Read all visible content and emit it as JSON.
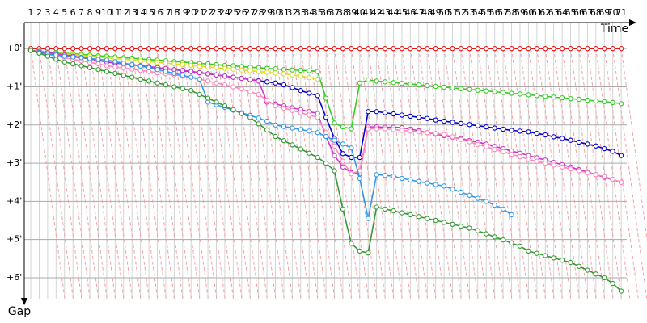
{
  "chart_data": {
    "type": "line",
    "x_label": "Time",
    "y_label": "Gap",
    "x": [
      1,
      2,
      3,
      4,
      5,
      6,
      7,
      8,
      9,
      10,
      11,
      12,
      13,
      14,
      15,
      16,
      17,
      18,
      19,
      20,
      21,
      22,
      23,
      24,
      25,
      26,
      27,
      28,
      29,
      30,
      31,
      32,
      33,
      34,
      35,
      36,
      37,
      38,
      39,
      40,
      41,
      42,
      43,
      44,
      45,
      46,
      47,
      48,
      49,
      50,
      51,
      52,
      53,
      54,
      55,
      56,
      57,
      58,
      59,
      60,
      61,
      62,
      63,
      64,
      65,
      66,
      67,
      68,
      69,
      70,
      71
    ],
    "xlim": [
      0.23,
      71.66
    ],
    "xticks": [
      1,
      2,
      3,
      4,
      5,
      6,
      7,
      8,
      9,
      10,
      11,
      12,
      13,
      14,
      15,
      16,
      17,
      18,
      19,
      20,
      21,
      22,
      23,
      24,
      25,
      26,
      27,
      28,
      29,
      30,
      31,
      32,
      33,
      34,
      35,
      36,
      37,
      38,
      39,
      40,
      41,
      42,
      43,
      44,
      45,
      46,
      47,
      48,
      49,
      50,
      51,
      52,
      53,
      54,
      55,
      56,
      57,
      58,
      59,
      60,
      61,
      62,
      63,
      64,
      65,
      66,
      67,
      68,
      69,
      70,
      71
    ],
    "ylim": [
      -0.68,
      6.55
    ],
    "yticks": [
      {
        "value": 0,
        "label": "+0'"
      },
      {
        "value": 1,
        "label": "+1'"
      },
      {
        "value": 2,
        "label": "+2'"
      },
      {
        "value": 3,
        "label": "+3'"
      },
      {
        "value": 4,
        "label": "+4'"
      },
      {
        "value": 5,
        "label": "+5'"
      },
      {
        "value": 6,
        "label": "+6'"
      }
    ],
    "y_inverted": true,
    "grid": true,
    "series": [
      {
        "color": "#ee1111",
        "values": [
          0,
          0,
          0,
          0,
          0,
          0,
          0,
          0,
          0,
          0,
          0,
          0,
          0,
          0,
          0,
          0,
          0,
          0,
          0,
          0,
          0,
          0,
          0,
          0,
          0,
          0,
          0,
          0,
          0,
          0,
          0,
          0,
          0,
          0,
          0,
          0,
          0,
          0,
          0,
          0,
          0,
          0,
          0,
          0,
          0,
          0,
          0,
          0,
          0,
          0,
          0,
          0,
          0,
          0,
          0,
          0,
          0,
          0,
          0,
          0,
          0,
          0,
          0,
          0,
          0,
          0,
          0,
          0,
          0,
          0,
          0
        ]
      },
      {
        "color": "#33cc22",
        "values": [
          0.05,
          0.07,
          0.09,
          0.1,
          0.12,
          0.14,
          0.15,
          0.17,
          0.19,
          0.2,
          0.22,
          0.24,
          0.25,
          0.27,
          0.29,
          0.3,
          0.32,
          0.34,
          0.35,
          0.37,
          0.39,
          0.4,
          0.42,
          0.44,
          0.45,
          0.47,
          0.49,
          0.5,
          0.52,
          0.53,
          0.55,
          0.56,
          0.57,
          0.58,
          0.6,
          1.3,
          1.95,
          2.05,
          2.1,
          0.9,
          0.82,
          0.85,
          0.87,
          0.89,
          0.91,
          0.93,
          0.95,
          0.97,
          0.99,
          1.01,
          1.03,
          1.05,
          1.07,
          1.09,
          1.11,
          1.13,
          1.15,
          1.17,
          1.19,
          1.21,
          1.23,
          1.25,
          1.27,
          1.29,
          1.31,
          1.33,
          1.35,
          1.37,
          1.39,
          1.41,
          1.44
        ]
      },
      {
        "color": "#dddd22",
        "values": [
          0.05,
          0.07,
          0.1,
          0.12,
          0.14,
          0.16,
          0.18,
          0.2,
          0.22,
          0.24,
          0.26,
          0.28,
          0.3,
          0.32,
          0.34,
          0.36,
          0.38,
          0.4,
          0.42,
          0.44,
          0.46,
          0.48,
          0.5,
          0.52,
          0.54,
          0.56,
          0.58,
          0.6,
          0.62,
          0.64,
          0.66,
          0.69,
          0.72,
          0.76,
          0.8,
          null,
          null,
          null,
          null,
          null,
          null,
          null,
          null,
          null,
          null,
          null,
          null,
          null,
          null,
          null,
          null,
          null,
          null,
          null,
          null,
          null,
          null,
          null,
          null,
          null,
          null,
          null,
          null,
          null,
          null,
          null,
          null,
          null,
          null,
          null,
          null
        ]
      },
      {
        "color": "#0000cc",
        "values": [
          0.05,
          0.08,
          0.11,
          0.14,
          0.17,
          0.2,
          0.23,
          0.27,
          0.31,
          0.35,
          0.38,
          0.4,
          0.43,
          0.45,
          0.48,
          0.5,
          0.53,
          0.55,
          0.58,
          0.6,
          0.63,
          0.66,
          0.69,
          0.72,
          0.75,
          0.78,
          0.81,
          0.84,
          0.87,
          0.9,
          0.95,
          1.02,
          1.1,
          1.17,
          1.23,
          1.8,
          2.35,
          2.75,
          2.85,
          2.85,
          1.65,
          1.65,
          1.68,
          1.71,
          1.74,
          1.77,
          1.8,
          1.83,
          1.87,
          1.9,
          1.93,
          1.96,
          1.99,
          2.02,
          2.05,
          2.08,
          2.11,
          2.14,
          2.16,
          2.18,
          2.22,
          2.26,
          2.31,
          2.35,
          2.4,
          2.45,
          2.5,
          2.55,
          2.62,
          2.69,
          2.8
        ]
      },
      {
        "color": "#cc33cc",
        "values": [
          0.05,
          0.08,
          0.11,
          0.14,
          0.17,
          0.2,
          0.23,
          0.27,
          0.31,
          0.35,
          0.37,
          0.4,
          0.42,
          0.45,
          0.47,
          0.5,
          0.52,
          0.55,
          0.57,
          0.6,
          0.63,
          0.66,
          0.69,
          0.72,
          0.75,
          0.78,
          0.81,
          0.85,
          1.4,
          1.45,
          1.5,
          1.55,
          1.6,
          1.65,
          1.7,
          2.3,
          2.8,
          3.1,
          3.25,
          3.28,
          2.05,
          2.05,
          2.06,
          2.06,
          2.07,
          2.11,
          2.15,
          2.2,
          2.24,
          2.28,
          2.32,
          2.36,
          2.41,
          2.45,
          2.5,
          2.56,
          2.62,
          2.68,
          2.74,
          2.8,
          2.86,
          2.92,
          2.98,
          3.04,
          3.1,
          3.17,
          3.23,
          3.3,
          3.37,
          3.43,
          3.5
        ]
      },
      {
        "color": "#ff88bb",
        "values": [
          0.05,
          0.1,
          0.15,
          0.2,
          0.24,
          0.28,
          0.32,
          0.36,
          0.4,
          0.45,
          0.48,
          0.51,
          0.54,
          0.57,
          0.6,
          0.63,
          0.66,
          0.69,
          0.72,
          0.75,
          0.8,
          0.85,
          0.9,
          0.95,
          1.0,
          1.06,
          1.13,
          1.2,
          1.35,
          1.5,
          1.56,
          1.62,
          1.68,
          1.74,
          1.8,
          2.2,
          2.55,
          2.95,
          3.28,
          3.2,
          2.1,
          2.1,
          2.1,
          2.12,
          2.14,
          2.16,
          2.18,
          2.2,
          2.22,
          2.25,
          2.31,
          2.38,
          2.44,
          2.51,
          2.57,
          2.64,
          2.7,
          2.77,
          2.83,
          2.9,
          2.95,
          3.0,
          3.05,
          3.1,
          3.15,
          3.2,
          3.25,
          3.3,
          3.35,
          3.42,
          3.5
        ]
      },
      {
        "color": "#3399ee",
        "values": [
          0.05,
          0.1,
          0.15,
          0.17,
          0.2,
          0.22,
          0.24,
          0.26,
          0.28,
          0.3,
          0.34,
          0.38,
          0.42,
          0.46,
          0.5,
          0.55,
          0.6,
          0.65,
          0.7,
          0.75,
          0.8,
          1.4,
          1.47,
          1.54,
          1.61,
          1.68,
          1.75,
          1.82,
          1.9,
          2.0,
          2.04,
          2.08,
          2.12,
          2.16,
          2.2,
          2.3,
          2.4,
          2.5,
          2.6,
          3.4,
          4.45,
          3.3,
          3.32,
          3.34,
          3.4,
          3.44,
          3.48,
          3.52,
          3.56,
          3.6,
          3.68,
          3.76,
          3.84,
          3.92,
          4.0,
          4.1,
          4.2,
          4.35,
          null,
          null,
          null,
          null,
          null,
          null,
          null,
          null,
          null,
          null,
          null,
          null,
          null
        ]
      },
      {
        "color": "#339933",
        "values": [
          0.05,
          0.12,
          0.2,
          0.28,
          0.35,
          0.4,
          0.45,
          0.5,
          0.55,
          0.6,
          0.65,
          0.7,
          0.75,
          0.8,
          0.85,
          0.9,
          0.95,
          1.0,
          1.05,
          1.1,
          1.2,
          1.3,
          1.4,
          1.5,
          1.6,
          1.7,
          1.8,
          1.97,
          2.13,
          2.3,
          2.41,
          2.52,
          2.63,
          2.74,
          2.85,
          3.0,
          3.2,
          4.2,
          5.1,
          5.3,
          5.35,
          4.15,
          4.2,
          4.25,
          4.3,
          4.35,
          4.4,
          4.45,
          4.5,
          4.55,
          4.6,
          4.65,
          4.7,
          4.77,
          4.85,
          4.93,
          5.01,
          5.09,
          5.17,
          5.3,
          5.36,
          5.42,
          5.48,
          5.54,
          5.6,
          5.7,
          5.8,
          5.9,
          6.0,
          6.15,
          6.35
        ]
      }
    ]
  }
}
